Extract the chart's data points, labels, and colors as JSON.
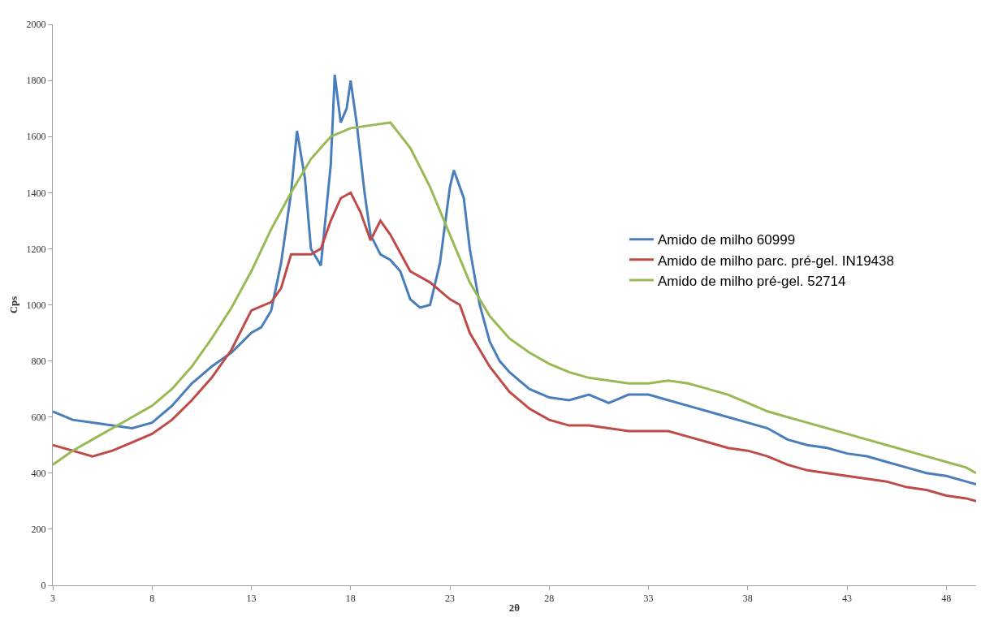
{
  "chart_data": {
    "type": "line",
    "xlabel": "2θ",
    "ylabel": "Cps",
    "xlim": [
      3,
      49.5
    ],
    "xticks": [
      3,
      8,
      13,
      18,
      23,
      28,
      33,
      38,
      43,
      48
    ],
    "ylim": [
      0,
      2000
    ],
    "yticks": [
      0,
      200,
      400,
      600,
      800,
      1000,
      1200,
      1400,
      1600,
      1800,
      2000
    ],
    "legend": "right",
    "marker": "none",
    "line_style": "solid",
    "series": [
      {
        "name": "Amido de milho 60999",
        "color": "#4a7ebb",
        "x": [
          3,
          4,
          5,
          6,
          7,
          8,
          9,
          10,
          11,
          12,
          13,
          13.5,
          14,
          14.5,
          15,
          15.3,
          15.7,
          16,
          16.5,
          17,
          17.2,
          17.5,
          17.8,
          18,
          18.3,
          18.7,
          19,
          19.5,
          20,
          20.5,
          21,
          21.5,
          22,
          22.5,
          23,
          23.2,
          23.7,
          24,
          24.5,
          25,
          25.5,
          26,
          27,
          28,
          29,
          30,
          31,
          32,
          33,
          34,
          35,
          36,
          37,
          38,
          39,
          40,
          41,
          42,
          43,
          44,
          45,
          46,
          47,
          48,
          49,
          49.5
        ],
        "values": [
          620,
          590,
          580,
          570,
          560,
          580,
          640,
          720,
          780,
          830,
          900,
          920,
          980,
          1150,
          1400,
          1620,
          1450,
          1200,
          1140,
          1500,
          1820,
          1650,
          1700,
          1800,
          1650,
          1400,
          1250,
          1180,
          1160,
          1120,
          1020,
          990,
          1000,
          1150,
          1420,
          1480,
          1380,
          1200,
          1000,
          870,
          800,
          760,
          700,
          670,
          660,
          680,
          650,
          680,
          680,
          660,
          640,
          620,
          600,
          580,
          560,
          520,
          500,
          490,
          470,
          460,
          440,
          420,
          400,
          390,
          370,
          360
        ]
      },
      {
        "name": "Amido de milho parc. pré-gel. IN19438",
        "color": "#be4b48",
        "x": [
          3,
          4,
          5,
          6,
          7,
          8,
          9,
          10,
          11,
          12,
          13,
          14,
          14.5,
          15,
          16,
          16.5,
          17,
          17.5,
          18,
          18.5,
          19,
          19.5,
          20,
          21,
          22,
          23,
          23.5,
          24,
          25,
          26,
          27,
          28,
          29,
          30,
          31,
          32,
          33,
          34,
          35,
          36,
          37,
          38,
          39,
          40,
          41,
          42,
          43,
          44,
          45,
          46,
          47,
          48,
          49,
          49.5
        ],
        "values": [
          500,
          480,
          460,
          480,
          510,
          540,
          590,
          660,
          740,
          840,
          980,
          1010,
          1060,
          1180,
          1180,
          1200,
          1300,
          1380,
          1400,
          1330,
          1230,
          1300,
          1250,
          1120,
          1080,
          1020,
          1000,
          900,
          780,
          690,
          630,
          590,
          570,
          570,
          560,
          550,
          550,
          550,
          530,
          510,
          490,
          480,
          460,
          430,
          410,
          400,
          390,
          380,
          370,
          350,
          340,
          320,
          310,
          300
        ]
      },
      {
        "name": "Amido de milho pré-gel. 52714",
        "color": "#98b954",
        "x": [
          3,
          4,
          5,
          6,
          7,
          8,
          9,
          10,
          11,
          12,
          13,
          14,
          15,
          16,
          17,
          18,
          19,
          20,
          21,
          22,
          23,
          24,
          25,
          26,
          27,
          28,
          29,
          30,
          31,
          32,
          33,
          34,
          35,
          36,
          37,
          38,
          39,
          40,
          41,
          42,
          43,
          44,
          45,
          46,
          47,
          48,
          49,
          49.5
        ],
        "values": [
          430,
          480,
          520,
          560,
          600,
          640,
          700,
          780,
          880,
          990,
          1120,
          1270,
          1400,
          1520,
          1600,
          1630,
          1640,
          1650,
          1560,
          1420,
          1250,
          1080,
          960,
          880,
          830,
          790,
          760,
          740,
          730,
          720,
          720,
          730,
          720,
          700,
          680,
          650,
          620,
          600,
          580,
          560,
          540,
          520,
          500,
          480,
          460,
          440,
          420,
          400
        ]
      }
    ]
  }
}
